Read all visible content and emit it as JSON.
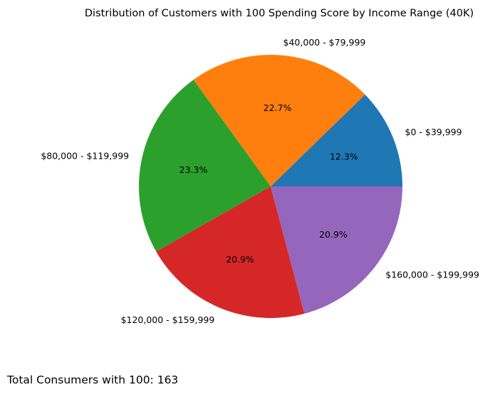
{
  "chart_data": {
    "type": "pie",
    "title": "Distribution of Customers with 100 Spending Score by Income Range (40K)",
    "categories": [
      "$0-$39,999",
      "$40,000-$79,999",
      "$80,000-$119,999",
      "$120,000-$159,999",
      "$160,000-$199,999"
    ],
    "display_labels": [
      "$0 - $39,999",
      "$40,000 - $79,999",
      "$80,000 - $119,999",
      "$120,000 - $159,999",
      "$160,000 - $199,999"
    ],
    "values": [
      12.3,
      22.7,
      23.3,
      20.9,
      20.9
    ],
    "percent_labels": [
      "12.3%",
      "22.7%",
      "23.3%",
      "20.9%",
      "20.9%"
    ],
    "colors": [
      "#1f77b4",
      "#ff7f0e",
      "#2ca02c",
      "#d62728",
      "#9467bd"
    ],
    "start_angle_deg": 0,
    "direction": "counterclockwise",
    "legend": "none"
  },
  "footer": {
    "note": "Total Consumers with 100: 163"
  }
}
